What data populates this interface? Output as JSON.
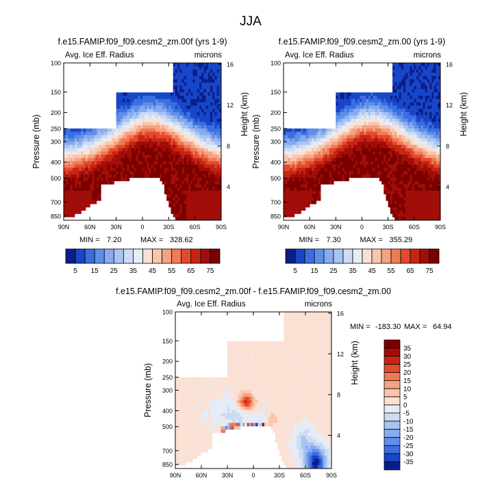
{
  "main_title": "JJA",
  "chart_data": [
    {
      "type": "heatmap",
      "id": "p1",
      "title": "f.e15.FAMIP.f09_f09.cesm2_zm.00f (yrs 1-9)",
      "left_label": "Avg. Ice Eff. Radius",
      "right_label": "microns",
      "ylabel": "Pressure (mb)",
      "ylabel_right": "Height (km)",
      "x_ticks": [
        "90N",
        "60N",
        "30N",
        "0",
        "30S",
        "60S",
        "90S"
      ],
      "x_tick_lats": [
        90,
        60,
        30,
        0,
        -30,
        -60,
        -90
      ],
      "xlim": [
        90,
        -90
      ],
      "y_ticks": [
        "100",
        "150",
        "200",
        "250",
        "300",
        "400",
        "500",
        "700",
        "850"
      ],
      "y_tick_values": [
        100,
        150,
        200,
        250,
        300,
        400,
        500,
        700,
        850
      ],
      "ylim": [
        100,
        900
      ],
      "height_ticks": [
        "16",
        "12",
        "8",
        "4"
      ],
      "height_tick_values": [
        16,
        12,
        8,
        4
      ],
      "stats": {
        "min_label": "MIN =",
        "min": "7.20",
        "max_label": "MAX =",
        "max": "328.62"
      },
      "colorbar": {
        "orientation": "horizontal",
        "colors": [
          "#0a1e8a",
          "#1846c8",
          "#3b6fe0",
          "#5f8ee8",
          "#86abef",
          "#a9c4f2",
          "#cddcf3",
          "#e5ecf6",
          "#fbe1d3",
          "#f9c6ad",
          "#f6a382",
          "#f07a57",
          "#e34a2c",
          "#c72514",
          "#a10d08",
          "#7a0000"
        ],
        "tick_labels": [
          "5",
          "15",
          "25",
          "35",
          "45",
          "55",
          "65",
          "75"
        ]
      },
      "field": {
        "kind": "mean",
        "seed": 1
      }
    },
    {
      "type": "heatmap",
      "id": "p2",
      "title": "f.e15.FAMIP.f09_f09.cesm2_zm.00 (yrs 1-9)",
      "left_label": "Avg. Ice Eff. Radius",
      "right_label": "microns",
      "ylabel": "Pressure (mb)",
      "ylabel_right": "Height (km)",
      "x_ticks": [
        "90N",
        "60N",
        "30N",
        "0",
        "30S",
        "60S",
        "90S"
      ],
      "x_tick_lats": [
        90,
        60,
        30,
        0,
        -30,
        -60,
        -90
      ],
      "xlim": [
        90,
        -90
      ],
      "y_ticks": [
        "100",
        "150",
        "200",
        "250",
        "300",
        "400",
        "500",
        "700",
        "850"
      ],
      "y_tick_values": [
        100,
        150,
        200,
        250,
        300,
        400,
        500,
        700,
        850
      ],
      "ylim": [
        100,
        900
      ],
      "height_ticks": [
        "16",
        "12",
        "8",
        "4"
      ],
      "height_tick_values": [
        16,
        12,
        8,
        4
      ],
      "stats": {
        "min_label": "MIN =",
        "min": "7.30",
        "max_label": "MAX =",
        "max": "355.29"
      },
      "colorbar": {
        "orientation": "horizontal",
        "colors": [
          "#0a1e8a",
          "#1846c8",
          "#3b6fe0",
          "#5f8ee8",
          "#86abef",
          "#a9c4f2",
          "#cddcf3",
          "#e5ecf6",
          "#fbe1d3",
          "#f9c6ad",
          "#f6a382",
          "#f07a57",
          "#e34a2c",
          "#c72514",
          "#a10d08",
          "#7a0000"
        ],
        "tick_labels": [
          "5",
          "15",
          "25",
          "35",
          "45",
          "55",
          "65",
          "75"
        ]
      },
      "field": {
        "kind": "mean",
        "seed": 2
      }
    },
    {
      "type": "heatmap",
      "id": "p3",
      "title": "f.e15.FAMIP.f09_f09.cesm2_zm.00f - f.e15.FAMIP.f09_f09.cesm2_zm.00",
      "left_label": "Avg. Ice Eff. Radius",
      "right_label": "microns",
      "ylabel": "Pressure (mb)",
      "ylabel_right": "Height (km)",
      "x_ticks": [
        "90N",
        "60N",
        "30N",
        "0",
        "30S",
        "60S",
        "90S"
      ],
      "x_tick_lats": [
        90,
        60,
        30,
        0,
        -30,
        -60,
        -90
      ],
      "xlim": [
        90,
        -90
      ],
      "y_ticks": [
        "100",
        "150",
        "200",
        "250",
        "300",
        "400",
        "500",
        "700",
        "850"
      ],
      "y_tick_values": [
        100,
        150,
        200,
        250,
        300,
        400,
        500,
        700,
        850
      ],
      "ylim": [
        100,
        900
      ],
      "height_ticks": [
        "16",
        "12",
        "8",
        "4"
      ],
      "height_tick_values": [
        16,
        12,
        8,
        4
      ],
      "stats": {
        "min_label": "MIN =",
        "min": "-183.30",
        "max_label": "MAX =",
        "max": "64.94"
      },
      "colorbar": {
        "orientation": "vertical",
        "colors": [
          "#7a0000",
          "#a10d08",
          "#c72514",
          "#e34a2c",
          "#f07a57",
          "#f6a382",
          "#f9c6ad",
          "#fbe1d3",
          "#e5ecf6",
          "#cddcf3",
          "#a9c4f2",
          "#86abef",
          "#5f8ee8",
          "#3b6fe0",
          "#1846c8",
          "#0a1e8a"
        ],
        "tick_labels": [
          "35",
          "30",
          "25",
          "20",
          "15",
          "10",
          "5",
          "0",
          "-5",
          "-10",
          "-15",
          "-20",
          "-25",
          "-30",
          "-35"
        ]
      },
      "field": {
        "kind": "diff",
        "seed": 3
      }
    }
  ]
}
